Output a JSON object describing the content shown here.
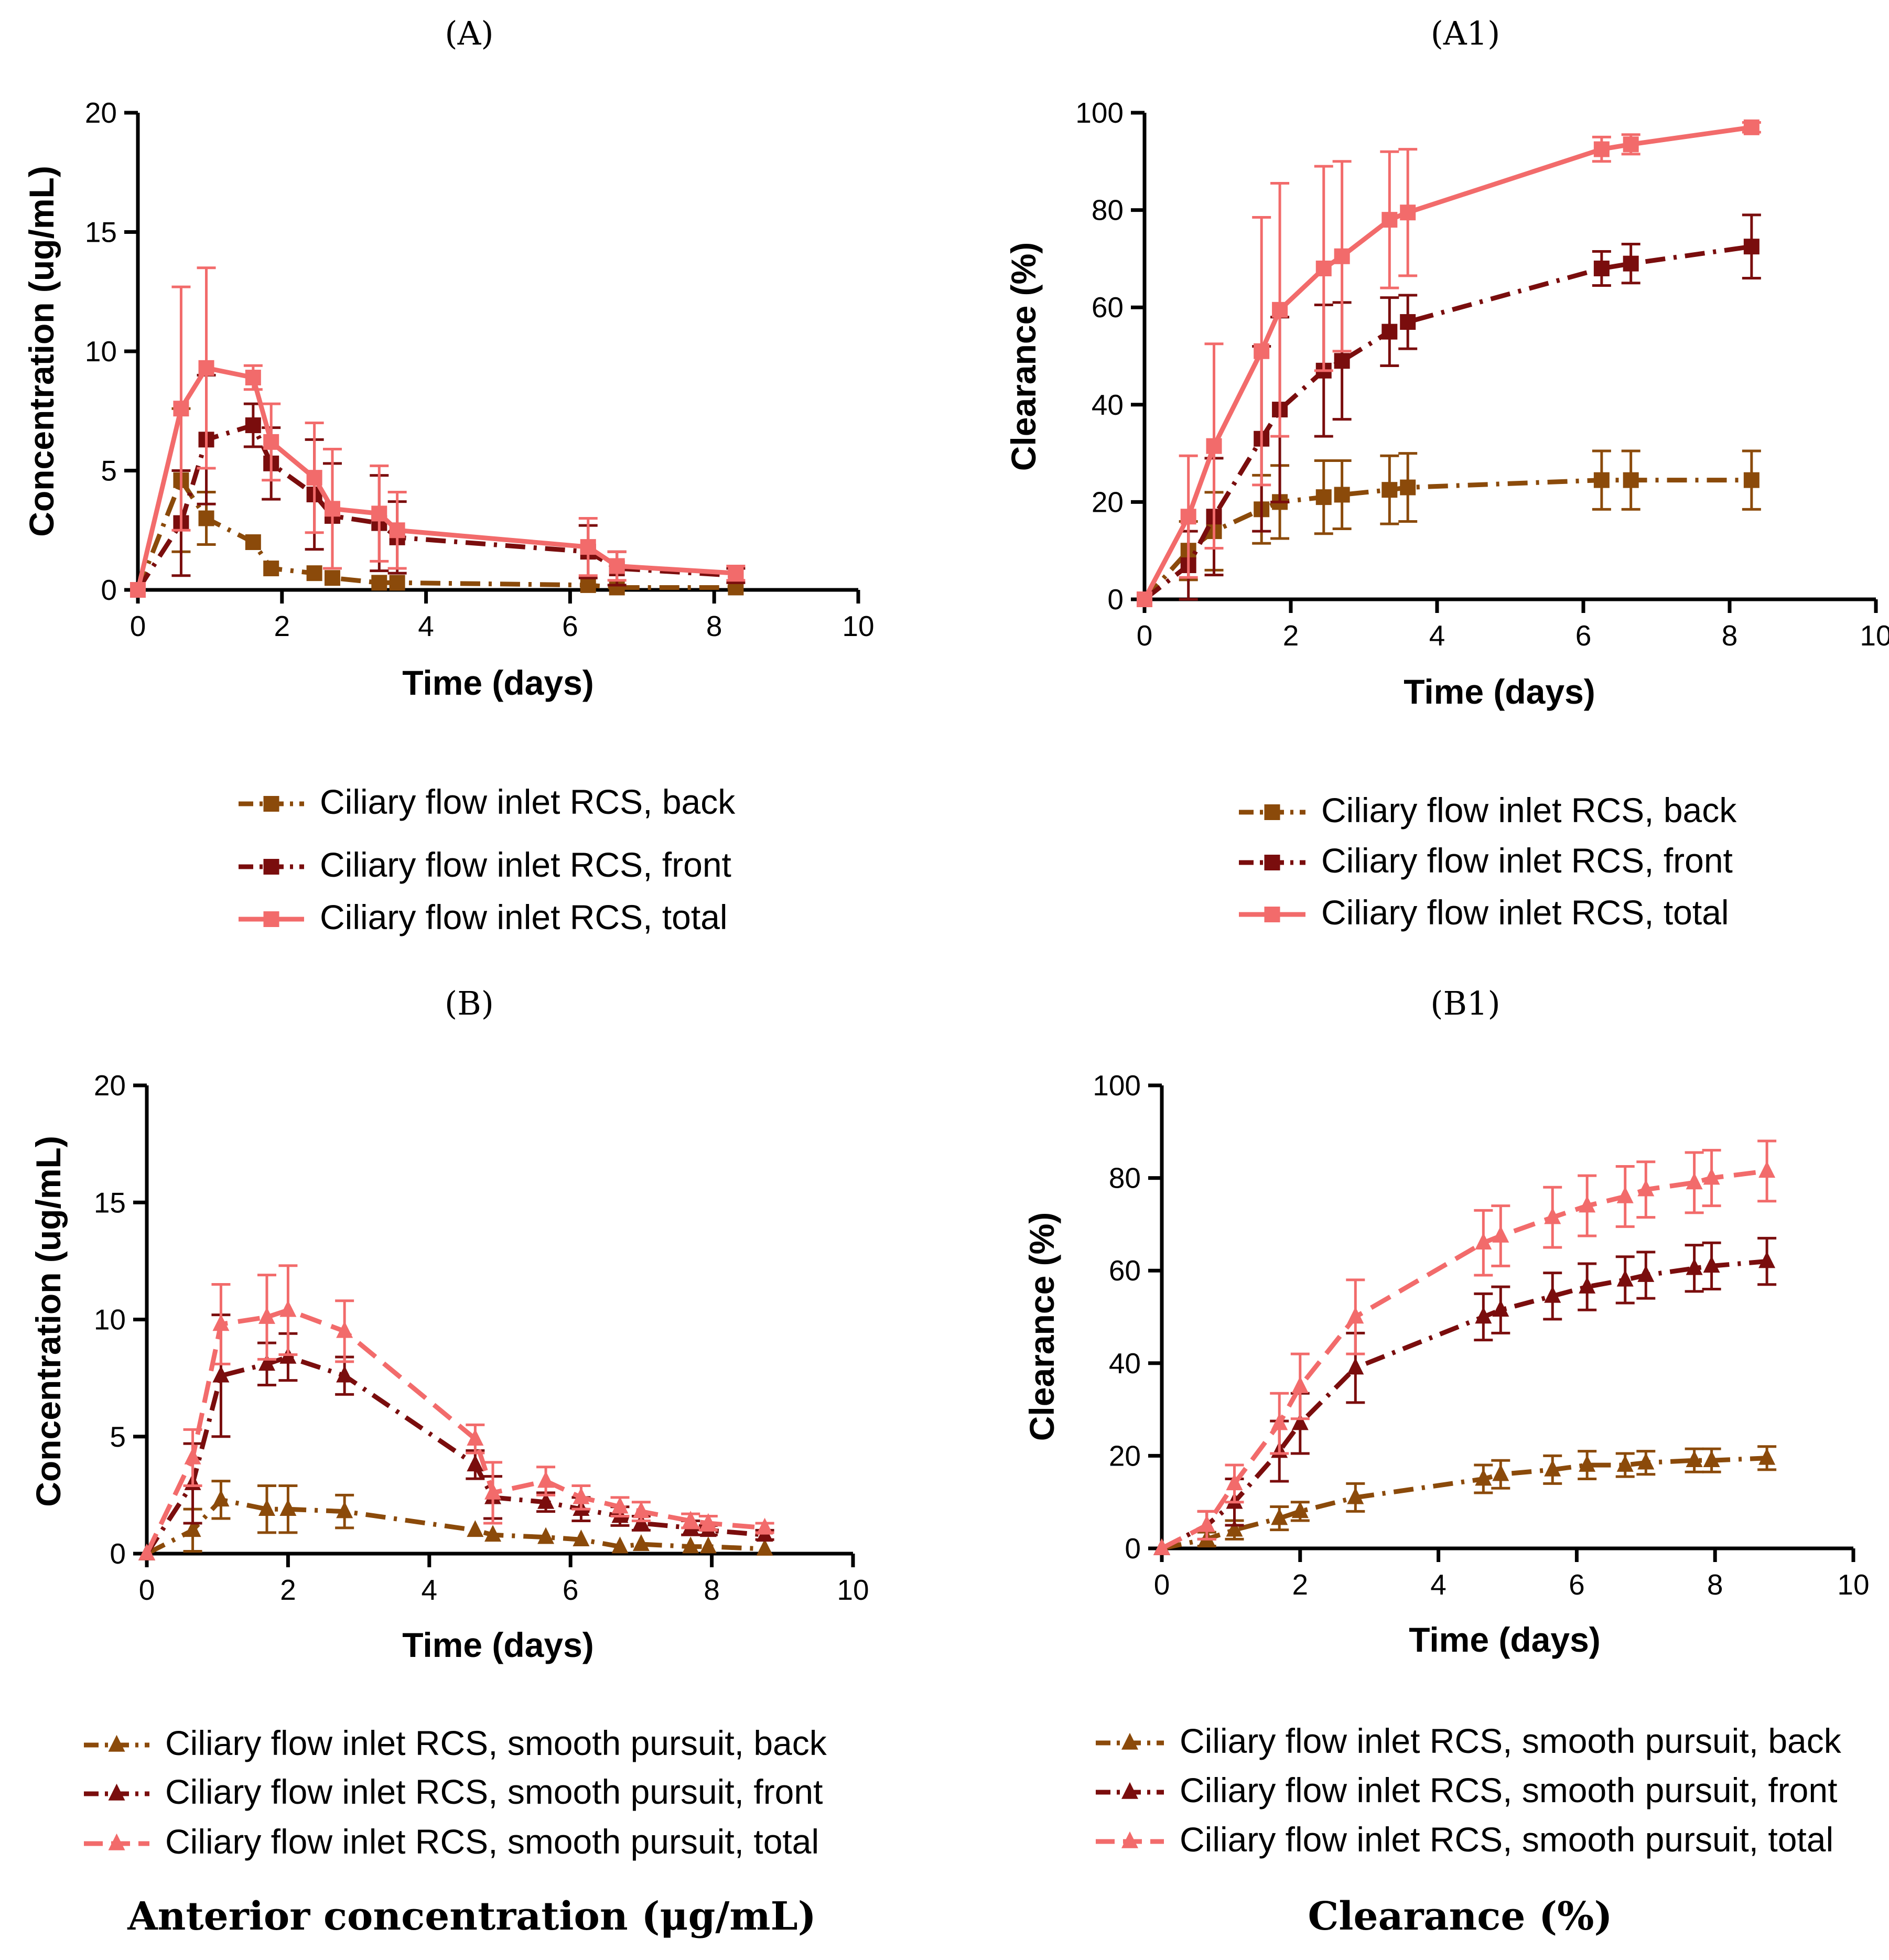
{
  "colors": {
    "back": "#8B4A0A",
    "front": "#7A0D0D",
    "total": "#F26B6B"
  },
  "captions": {
    "left": "Anterior concentration (μg/mL)",
    "right": "Clearance (%)"
  },
  "chart_data": [
    {
      "id": "A",
      "type": "line",
      "panel_label": "(A)",
      "xlabel": "Time (days)",
      "ylabel": "Concentration (ug/mL)",
      "xlim": [
        0,
        10
      ],
      "ylim": [
        0,
        20
      ],
      "xticks": [
        "0",
        "2",
        "4",
        "6",
        "8",
        "10"
      ],
      "yticks": [
        "0",
        "5",
        "10",
        "15",
        "20"
      ],
      "marker": "square",
      "series": [
        {
          "name": "Ciliary flow inlet RCS, back",
          "color_key": "back",
          "dash": "dashdot",
          "x": [
            0,
            0.6,
            0.95,
            1.6,
            1.85,
            2.45,
            2.7,
            3.35,
            3.6,
            6.25,
            6.65,
            8.3
          ],
          "y": [
            0,
            4.6,
            3.0,
            2.0,
            0.9,
            0.7,
            0.5,
            0.3,
            0.3,
            0.2,
            0.1,
            0.1
          ],
          "err": [
            0,
            3.0,
            1.1,
            0,
            0,
            0,
            0,
            0,
            0,
            0,
            0,
            0
          ]
        },
        {
          "name": "Ciliary flow inlet RCS, front",
          "color_key": "front",
          "dash": "dashdot",
          "x": [
            0,
            0.6,
            0.95,
            1.6,
            1.85,
            2.45,
            2.7,
            3.35,
            3.6,
            6.25,
            6.65,
            8.3
          ],
          "y": [
            0,
            2.8,
            6.3,
            6.9,
            5.3,
            4.0,
            3.1,
            2.8,
            2.2,
            1.6,
            0.9,
            0.6
          ],
          "err": [
            0,
            2.2,
            2.7,
            0.9,
            1.5,
            2.3,
            2.2,
            2.0,
            1.5,
            1.1,
            0.7,
            0.3
          ]
        },
        {
          "name": "Ciliary flow inlet RCS, total",
          "color_key": "total",
          "dash": "solid",
          "x": [
            0,
            0.6,
            0.95,
            1.6,
            1.85,
            2.45,
            2.7,
            3.35,
            3.6,
            6.25,
            6.65,
            8.3
          ],
          "y": [
            0,
            7.6,
            9.3,
            8.9,
            6.2,
            4.7,
            3.4,
            3.2,
            2.5,
            1.8,
            1.0,
            0.7
          ],
          "err": [
            0,
            5.1,
            4.2,
            0.5,
            1.6,
            2.3,
            2.5,
            2.0,
            1.6,
            1.2,
            0.6,
            0.3
          ]
        }
      ]
    },
    {
      "id": "A1",
      "type": "line",
      "panel_label": "(A1)",
      "xlabel": "Time (days)",
      "ylabel": "Clearance (%)",
      "xlim": [
        0,
        10
      ],
      "ylim": [
        0,
        100
      ],
      "xticks": [
        "0",
        "2",
        "4",
        "6",
        "8",
        "10"
      ],
      "yticks": [
        "0",
        "20",
        "40",
        "60",
        "80",
        "100"
      ],
      "marker": "square",
      "series": [
        {
          "name": "Ciliary flow inlet RCS, back",
          "color_key": "back",
          "dash": "dashdot",
          "x": [
            0,
            0.6,
            0.95,
            1.6,
            1.85,
            2.45,
            2.7,
            3.35,
            3.6,
            6.25,
            6.65,
            8.3
          ],
          "y": [
            0,
            10,
            14,
            18.5,
            20,
            21,
            21.5,
            22.5,
            23,
            24.5,
            24.5,
            24.5
          ],
          "err": [
            0,
            6,
            8,
            7,
            7.5,
            7.5,
            7,
            7,
            7,
            6,
            6,
            6
          ]
        },
        {
          "name": "Ciliary flow inlet RCS, front",
          "color_key": "front",
          "dash": "dashdot",
          "x": [
            0,
            0.6,
            0.95,
            1.6,
            1.85,
            2.45,
            2.7,
            3.35,
            3.6,
            6.25,
            6.65,
            8.3
          ],
          "y": [
            0,
            7,
            17,
            33,
            39,
            47,
            49,
            55,
            57,
            68,
            69,
            72.5
          ],
          "err": [
            0,
            7,
            12,
            19,
            19,
            13.5,
            12,
            7,
            5.5,
            3.5,
            4,
            6.5
          ]
        },
        {
          "name": "Ciliary flow inlet RCS, total",
          "color_key": "total",
          "dash": "solid",
          "x": [
            0,
            0.6,
            0.95,
            1.6,
            1.85,
            2.45,
            2.7,
            3.35,
            3.6,
            6.25,
            6.65,
            8.3
          ],
          "y": [
            0,
            17,
            31.5,
            51,
            59.5,
            68,
            70.5,
            78,
            79.5,
            92.5,
            93.5,
            97
          ],
          "err": [
            0,
            12.5,
            21,
            27.5,
            26,
            21,
            19.5,
            14,
            13,
            2.5,
            2,
            1
          ]
        }
      ]
    },
    {
      "id": "B",
      "type": "line",
      "panel_label": "(B)",
      "xlabel": "Time (days)",
      "ylabel": "Concentration (ug/mL)",
      "xlim": [
        0,
        10
      ],
      "ylim": [
        0,
        20
      ],
      "xticks": [
        "0",
        "2",
        "4",
        "6",
        "8",
        "10"
      ],
      "yticks": [
        "0",
        "5",
        "10",
        "15",
        "20"
      ],
      "marker": "triangle",
      "series": [
        {
          "name": "Ciliary flow inlet RCS, smooth pursuit, back",
          "color_key": "back",
          "dash": "dashdot",
          "x": [
            0,
            0.65,
            1.05,
            1.7,
            2.0,
            2.8,
            4.65,
            4.9,
            5.65,
            6.15,
            6.7,
            7.0,
            7.7,
            7.95,
            8.75
          ],
          "y": [
            0,
            1.0,
            2.3,
            1.9,
            1.9,
            1.8,
            1.0,
            0.8,
            0.7,
            0.6,
            0.3,
            0.4,
            0.3,
            0.3,
            0.2
          ],
          "err": [
            0,
            0.9,
            0.8,
            1.0,
            1.0,
            0.7,
            0,
            0,
            0,
            0,
            0,
            0,
            0,
            0,
            0
          ]
        },
        {
          "name": "Ciliary flow inlet RCS, smooth pursuit, front",
          "color_key": "front",
          "dash": "dashdot",
          "x": [
            0,
            0.65,
            1.05,
            1.7,
            2.0,
            2.8,
            4.65,
            4.9,
            5.65,
            6.15,
            6.7,
            7.0,
            7.7,
            7.95,
            8.75
          ],
          "y": [
            0,
            3.0,
            7.6,
            8.1,
            8.4,
            7.6,
            3.8,
            2.4,
            2.2,
            1.9,
            1.6,
            1.3,
            1.1,
            1.0,
            0.8
          ],
          "err": [
            0,
            1.7,
            2.6,
            0.9,
            1.0,
            0.8,
            0.6,
            0.9,
            0.4,
            0.5,
            0.4,
            0.3,
            0.3,
            0.2,
            0.2
          ]
        },
        {
          "name": "Ciliary flow inlet RCS, smooth pursuit, total",
          "color_key": "total",
          "dash": "dashed",
          "x": [
            0,
            0.65,
            1.05,
            1.7,
            2.0,
            2.8,
            4.65,
            4.9,
            5.65,
            6.15,
            6.7,
            7.0,
            7.7,
            7.95,
            8.75
          ],
          "y": [
            0,
            4.1,
            9.8,
            10.1,
            10.4,
            9.5,
            4.9,
            2.6,
            3.1,
            2.4,
            2.0,
            1.8,
            1.4,
            1.3,
            1.1
          ],
          "err": [
            0,
            1.2,
            1.7,
            1.8,
            1.9,
            1.3,
            0.6,
            1.3,
            0.6,
            0.5,
            0.4,
            0.4,
            0.3,
            0.3,
            0.2
          ]
        }
      ]
    },
    {
      "id": "B1",
      "type": "line",
      "panel_label": "(B1)",
      "xlabel": "Time (days)",
      "ylabel": "Clearance (%)",
      "xlim": [
        0,
        10
      ],
      "ylim": [
        0,
        100
      ],
      "xticks": [
        "0",
        "2",
        "4",
        "6",
        "8",
        "10"
      ],
      "yticks": [
        "0",
        "20",
        "40",
        "60",
        "80",
        "100"
      ],
      "marker": "triangle",
      "series": [
        {
          "name": "Ciliary flow inlet RCS, smooth pursuit, back",
          "color_key": "back",
          "dash": "dashdot",
          "x": [
            0,
            0.65,
            1.05,
            1.7,
            2.0,
            2.8,
            4.65,
            4.9,
            5.65,
            6.15,
            6.7,
            7.0,
            7.7,
            7.95,
            8.75
          ],
          "y": [
            0,
            2,
            4,
            6.5,
            8,
            11,
            15,
            16,
            17,
            18,
            18,
            18.5,
            19,
            19,
            19.5
          ],
          "err": [
            0,
            1.5,
            2,
            2.5,
            2,
            3,
            3,
            3,
            3,
            3,
            2.5,
            2.5,
            2.5,
            2.5,
            2.5
          ]
        },
        {
          "name": "Ciliary flow inlet RCS, smooth pursuit, front",
          "color_key": "front",
          "dash": "dashdot",
          "x": [
            0,
            0.65,
            1.05,
            1.7,
            2.0,
            2.8,
            4.65,
            4.9,
            5.65,
            6.15,
            6.7,
            7.0,
            7.7,
            7.95,
            8.75
          ],
          "y": [
            0,
            5,
            10,
            21,
            27,
            39,
            50,
            51.5,
            54.5,
            56.5,
            58,
            59,
            60.5,
            61,
            62
          ],
          "err": [
            0,
            3,
            5,
            6.5,
            6.5,
            7.5,
            5,
            5,
            5,
            5,
            5,
            5,
            5,
            5,
            5
          ]
        },
        {
          "name": "Ciliary flow inlet RCS, smooth pursuit, total",
          "color_key": "total",
          "dash": "dashed",
          "x": [
            0,
            0.65,
            1.05,
            1.7,
            2.0,
            2.8,
            4.65,
            4.9,
            5.65,
            6.15,
            6.7,
            7.0,
            7.7,
            7.95,
            8.75
          ],
          "y": [
            0,
            5,
            14,
            27,
            35,
            50,
            66,
            67.5,
            71.5,
            74,
            76,
            77.5,
            79,
            80,
            81.5
          ],
          "err": [
            0,
            3,
            4,
            6.5,
            7,
            8,
            7,
            6.5,
            6.5,
            6.5,
            6.5,
            6,
            6.5,
            6,
            6.5
          ]
        }
      ]
    }
  ]
}
